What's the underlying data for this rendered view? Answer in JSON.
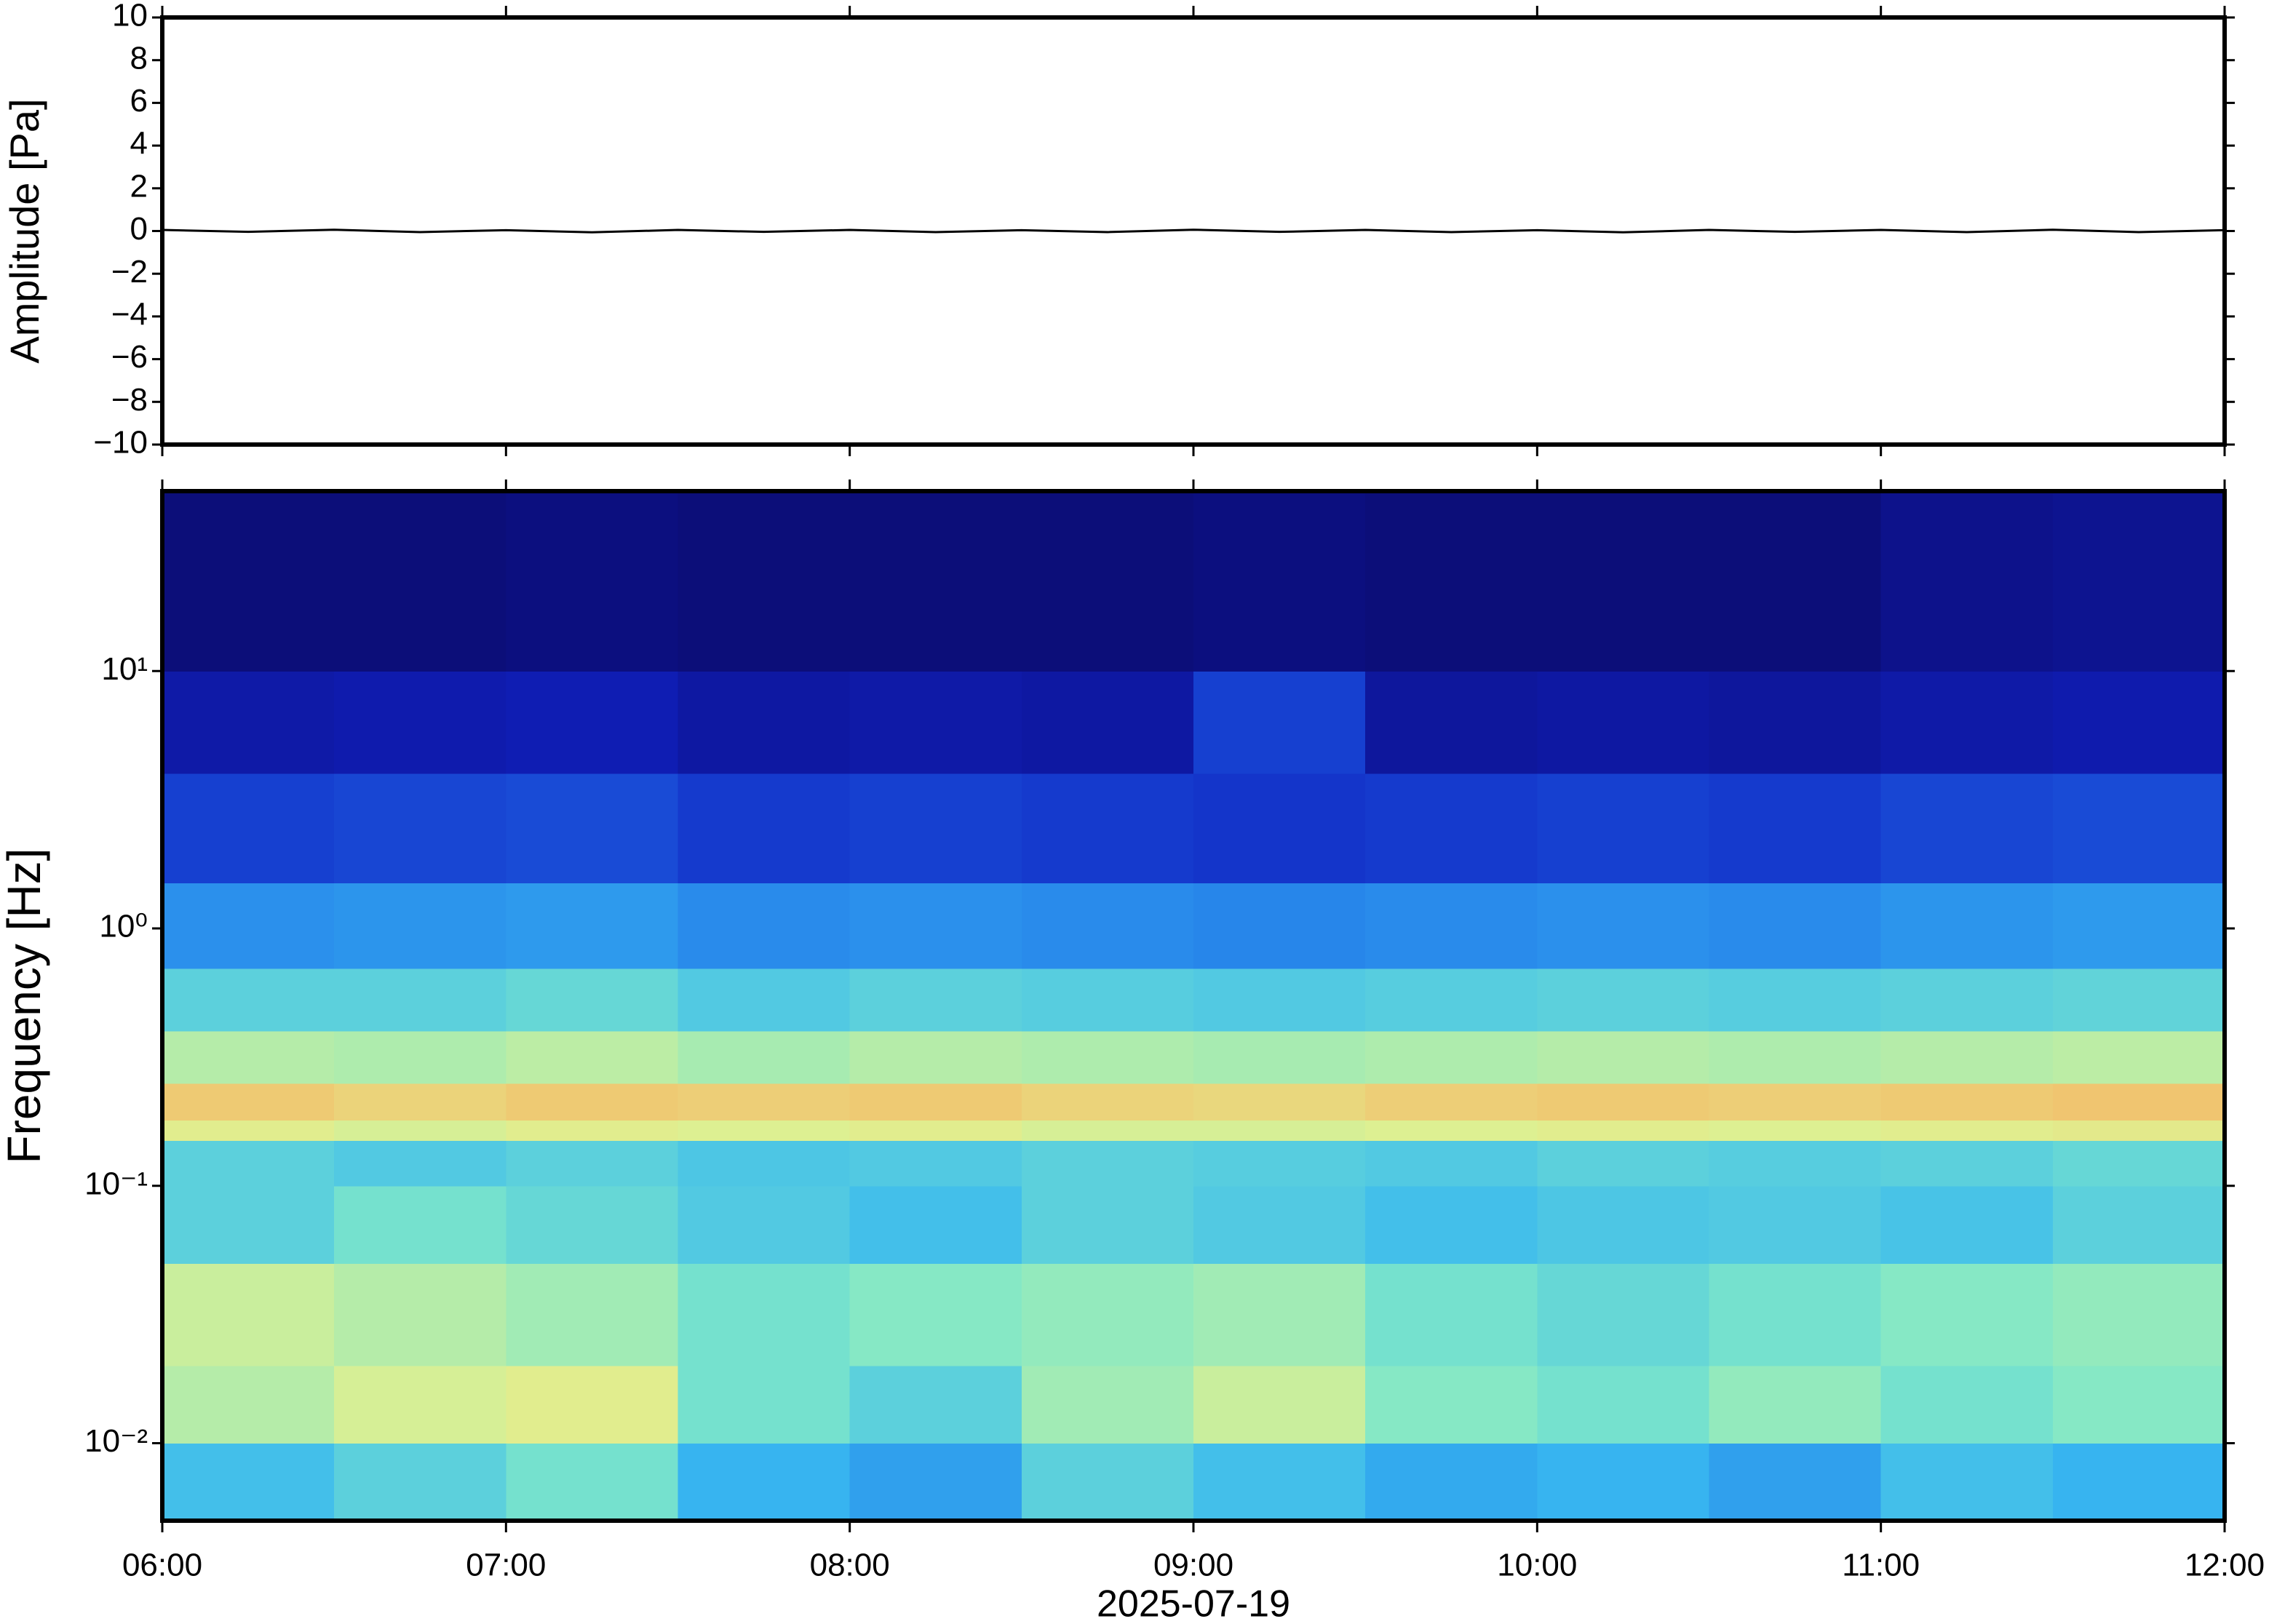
{
  "chart_data": [
    {
      "type": "line",
      "ylabel": "Amplitude [Pa]",
      "color": "#000000",
      "xlim": [
        6,
        12
      ],
      "xticks": [
        6,
        7,
        8,
        9,
        10,
        11,
        12
      ],
      "ylim": [
        -10,
        10
      ],
      "yticks": [
        {
          "value": -10,
          "label": "−10"
        },
        {
          "value": -8,
          "label": "−8"
        },
        {
          "value": -6,
          "label": "−6"
        },
        {
          "value": -4,
          "label": "−4"
        },
        {
          "value": -2,
          "label": "−2"
        },
        0,
        2,
        4,
        6,
        8,
        10
      ],
      "x": [
        6,
        6.25,
        6.5,
        6.75,
        7,
        7.25,
        7.5,
        7.75,
        8,
        8.25,
        8.5,
        8.75,
        9,
        9.25,
        9.5,
        9.75,
        10,
        10.25,
        10.5,
        10.75,
        11,
        11.25,
        11.5,
        11.75,
        12
      ],
      "values": [
        0.05,
        -0.04,
        0.06,
        -0.05,
        0.04,
        -0.06,
        0.05,
        -0.04,
        0.05,
        -0.05,
        0.04,
        -0.05,
        0.06,
        -0.04,
        0.05,
        -0.05,
        0.04,
        -0.06,
        0.05,
        -0.04,
        0.05,
        -0.05,
        0.06,
        -0.05,
        0.04
      ]
    },
    {
      "type": "heatmap",
      "xlabel": "2025-07-19",
      "ylabel": "Frequency [Hz]",
      "xlim": [
        6,
        12
      ],
      "xticks": [
        {
          "value": 6,
          "label": "06:00"
        },
        {
          "value": 7,
          "label": "07:00"
        },
        {
          "value": 8,
          "label": "08:00"
        },
        {
          "value": 9,
          "label": "09:00"
        },
        {
          "value": 10,
          "label": "10:00"
        },
        {
          "value": 11,
          "label": "11:00"
        },
        {
          "value": 12,
          "label": "12:00"
        }
      ],
      "ylim": [
        0.005,
        50
      ],
      "log_y": true,
      "yticks": [
        {
          "value": 0.01,
          "label": "10⁻²"
        },
        {
          "value": 0.1,
          "label": "10⁻¹"
        },
        {
          "value": 1,
          "label": "10⁰"
        },
        {
          "value": 10,
          "label": "10¹"
        }
      ],
      "clim": [
        0,
        1
      ],
      "colormap": [
        "#0b0b6e",
        "#1020c0",
        "#2070e8",
        "#38b8f0",
        "#80e8c8",
        "#e0f090",
        "#f8b060",
        "#f07040"
      ],
      "x_edges": [
        6,
        6.5,
        7,
        7.5,
        8,
        8.5,
        9,
        9.5,
        10,
        10.5,
        11,
        11.5,
        12
      ],
      "y_edges": [
        0.005,
        0.01,
        0.02,
        0.05,
        0.1,
        0.15,
        0.18,
        0.25,
        0.4,
        0.7,
        1.5,
        4,
        10,
        50
      ],
      "values": [
        [
          0.45,
          0.5,
          0.55,
          0.42,
          0.38,
          0.5,
          0.45,
          0.4,
          0.42,
          0.38,
          0.45,
          0.42
        ],
        [
          0.65,
          0.7,
          0.72,
          0.55,
          0.5,
          0.62,
          0.68,
          0.58,
          0.55,
          0.6,
          0.55,
          0.58
        ],
        [
          0.68,
          0.65,
          0.62,
          0.55,
          0.58,
          0.6,
          0.62,
          0.55,
          0.52,
          0.55,
          0.58,
          0.6
        ],
        [
          0.5,
          0.55,
          0.52,
          0.48,
          0.45,
          0.5,
          0.48,
          0.45,
          0.47,
          0.48,
          0.46,
          0.5
        ],
        [
          0.5,
          0.48,
          0.5,
          0.47,
          0.48,
          0.5,
          0.49,
          0.48,
          0.5,
          0.49,
          0.5,
          0.52
        ],
        [
          0.72,
          0.7,
          0.72,
          0.71,
          0.72,
          0.7,
          0.7,
          0.71,
          0.72,
          0.71,
          0.72,
          0.73
        ],
        [
          0.8,
          0.78,
          0.8,
          0.79,
          0.8,
          0.78,
          0.77,
          0.79,
          0.8,
          0.79,
          0.8,
          0.81
        ],
        [
          0.65,
          0.64,
          0.66,
          0.63,
          0.65,
          0.64,
          0.63,
          0.64,
          0.65,
          0.64,
          0.65,
          0.66
        ],
        [
          0.5,
          0.5,
          0.52,
          0.48,
          0.5,
          0.49,
          0.48,
          0.49,
          0.5,
          0.49,
          0.5,
          0.51
        ],
        [
          0.35,
          0.36,
          0.37,
          0.34,
          0.35,
          0.34,
          0.33,
          0.34,
          0.35,
          0.34,
          0.36,
          0.37
        ],
        [
          0.2,
          0.21,
          0.22,
          0.19,
          0.2,
          0.19,
          0.18,
          0.19,
          0.2,
          0.19,
          0.21,
          0.22
        ],
        [
          0.1,
          0.11,
          0.12,
          0.09,
          0.1,
          0.09,
          0.2,
          0.08,
          0.09,
          0.08,
          0.1,
          0.11
        ],
        [
          0.02,
          0.02,
          0.03,
          0.02,
          0.02,
          0.02,
          0.03,
          0.02,
          0.02,
          0.02,
          0.05,
          0.06
        ]
      ]
    }
  ]
}
